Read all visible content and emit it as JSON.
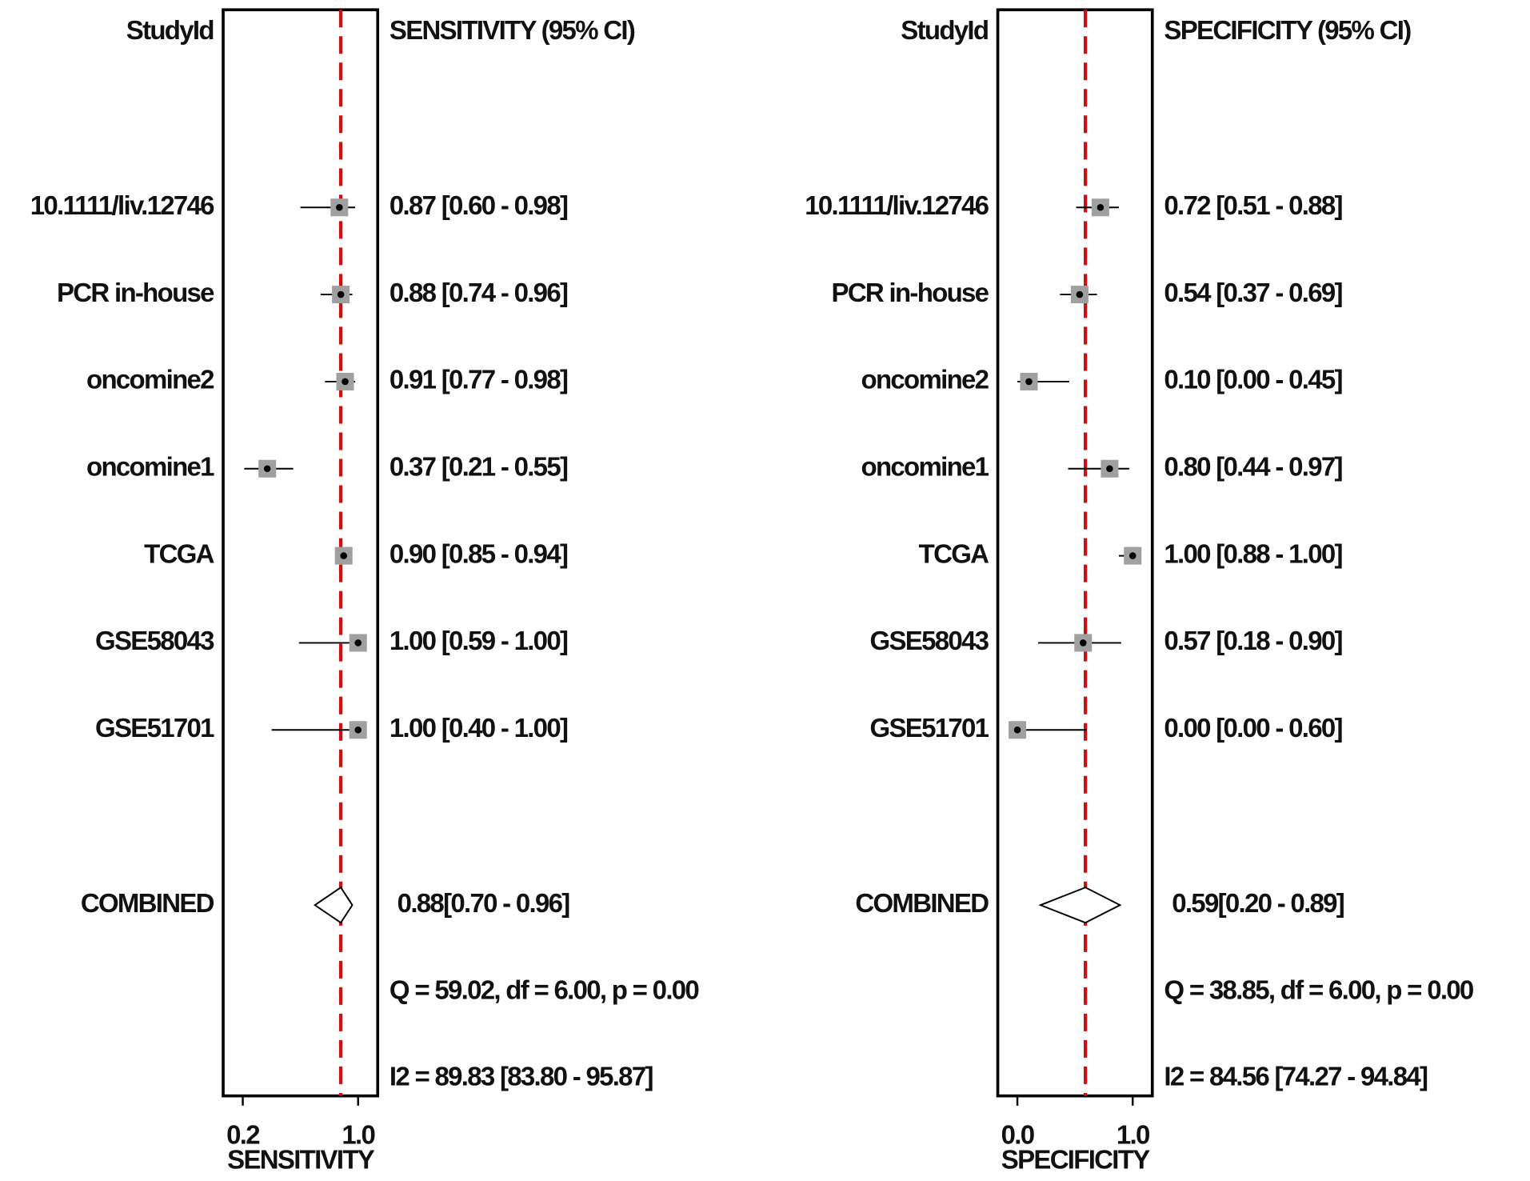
{
  "chart_data": [
    {
      "type": "forest",
      "study_header": "StudyId",
      "estimate_header": "SENSITIVITY (95% CI)",
      "categories": [
        "10.1111/liv.12746",
        "PCR in-house",
        "oncomine2",
        "oncomine1",
        "TCGA",
        "GSE58043",
        "GSE51701"
      ],
      "values": [
        0.87,
        0.88,
        0.91,
        0.37,
        0.9,
        1.0,
        1.0
      ],
      "lower": [
        0.6,
        0.74,
        0.77,
        0.21,
        0.85,
        0.59,
        0.4
      ],
      "upper": [
        0.98,
        0.96,
        0.98,
        0.55,
        0.94,
        1.0,
        1.0
      ],
      "value_labels": [
        "0.87 [0.60 - 0.98]",
        "0.88 [0.74 - 0.96]",
        "0.91 [0.77 - 0.98]",
        "0.37 [0.21 - 0.55]",
        "0.90 [0.85 - 0.94]",
        "1.00 [0.59 - 1.00]",
        "1.00 [0.40 - 1.00]"
      ],
      "combined": {
        "label": "COMBINED",
        "value": 0.88,
        "lower": 0.7,
        "upper": 0.96,
        "value_label": "0.88[0.70 - 0.96]"
      },
      "heterogeneity": "Q = 59.02, df = 6.00, p = 0.00",
      "i2": "I2 = 89.83 [83.80 - 95.87]",
      "xlabel": "SENSITIVITY",
      "xlim": [
        0.064,
        1.136
      ],
      "xticks": [
        0.2,
        {
          "value": 1,
          "label": "1.0"
        }
      ],
      "marker_color": "#a0a0a0",
      "reference_color": "#cc1111"
    },
    {
      "type": "forest",
      "study_header": "StudyId",
      "estimate_header": "SPECIFICITY (95% CI)",
      "categories": [
        "10.1111/liv.12746",
        "PCR in-house",
        "oncomine2",
        "oncomine1",
        "TCGA",
        "GSE58043",
        "GSE51701"
      ],
      "values": [
        0.72,
        0.54,
        0.1,
        0.8,
        1.0,
        0.57,
        0.0
      ],
      "lower": [
        0.51,
        0.37,
        0.0,
        0.44,
        0.88,
        0.18,
        0.0
      ],
      "upper": [
        0.88,
        0.69,
        0.45,
        0.97,
        1.0,
        0.9,
        0.6
      ],
      "value_labels": [
        "0.72 [0.51 - 0.88]",
        "0.54 [0.37 - 0.69]",
        "0.10 [0.00 - 0.45]",
        "0.80 [0.44 - 0.97]",
        "1.00 [0.88 - 1.00]",
        "0.57 [0.18 - 0.90]",
        "0.00 [0.00 - 0.60]"
      ],
      "combined": {
        "label": "COMBINED",
        "value": 0.59,
        "lower": 0.2,
        "upper": 0.89,
        "value_label": "0.59[0.20 - 0.89]"
      },
      "heterogeneity": "Q = 38.85, df = 6.00, p = 0.00",
      "i2": "I2 = 84.56 [74.27 - 94.84]",
      "xlabel": "SPECIFICITY",
      "xlim": [
        -0.17,
        1.17
      ],
      "xticks": [
        {
          "value": 0,
          "label": "0.0"
        },
        {
          "value": 1,
          "label": "1.0"
        }
      ],
      "marker_color": "#a0a0a0",
      "reference_color": "#cc1111"
    }
  ]
}
